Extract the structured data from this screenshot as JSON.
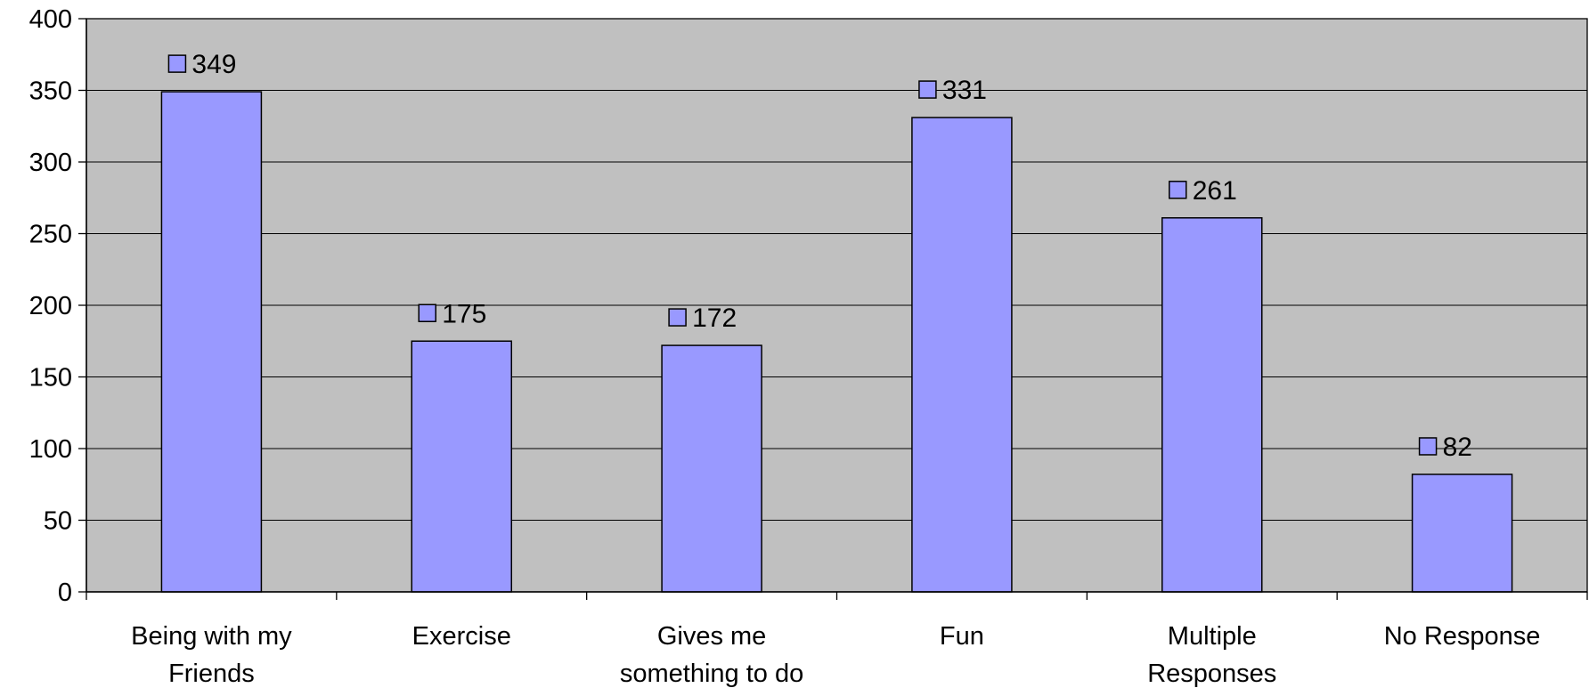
{
  "chart_data": {
    "type": "bar",
    "title": "",
    "xlabel": "",
    "ylabel": "",
    "categories": [
      [
        "Being with my",
        "Friends"
      ],
      [
        "Exercise"
      ],
      [
        "Gives me",
        "something to do"
      ],
      [
        "Fun"
      ],
      [
        "Multiple",
        "Responses"
      ],
      [
        "No Response"
      ]
    ],
    "values": [
      349,
      175,
      172,
      331,
      261,
      82
    ],
    "data_labels": [
      "349",
      "175",
      "172",
      "331",
      "261",
      "82"
    ],
    "ylim": [
      0,
      400
    ],
    "yticks": [
      0,
      50,
      100,
      150,
      200,
      250,
      300,
      350,
      400
    ],
    "grid": true,
    "legend": "none",
    "colors": {
      "plot_background": "#c0c0c0",
      "bar_fill": "#9999ff",
      "bar_stroke": "#000000",
      "gridline": "#000000",
      "axis": "#000000"
    }
  }
}
